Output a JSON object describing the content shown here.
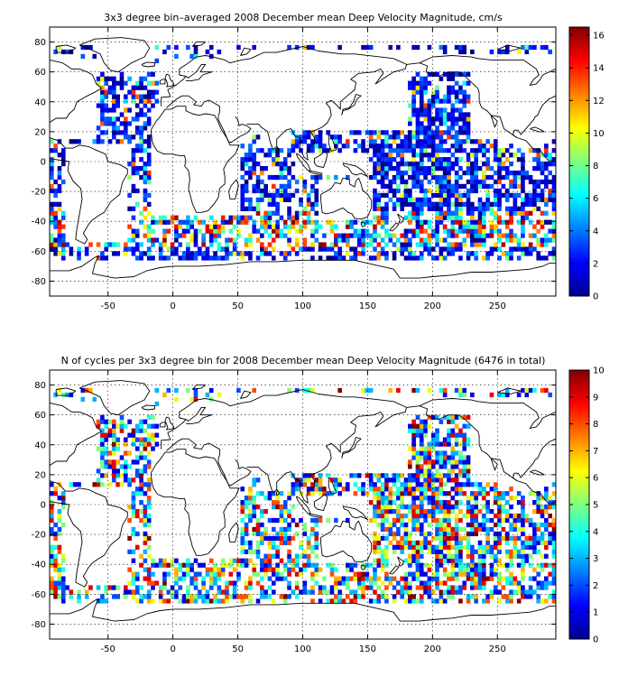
{
  "chart_data": [
    {
      "type": "heatmap",
      "title": "3x3 degree bin–averaged 2008 December mean Deep Velocity Magnitude, cm/s",
      "xlim": [
        -95,
        295
      ],
      "ylim": [
        -90,
        90
      ],
      "xticks": [
        -50,
        0,
        50,
        100,
        150,
        200,
        250
      ],
      "yticks": [
        -80,
        -60,
        -40,
        -20,
        0,
        20,
        40,
        60,
        80
      ],
      "grid": true,
      "colormap": "jet",
      "colorbar": {
        "min": 0,
        "max": 16.5,
        "ticks": [
          0,
          2,
          4,
          6,
          8,
          10,
          12,
          14,
          16
        ],
        "placement": "right"
      },
      "bin_size_deg": 3
    },
    {
      "type": "heatmap",
      "title": "N of cycles per 3x3 degree bin for 2008 December mean Deep Velocity Magnitude (6476 in total)",
      "xlim": [
        -95,
        295
      ],
      "ylim": [
        -90,
        90
      ],
      "xticks": [
        -50,
        0,
        50,
        100,
        150,
        200,
        250
      ],
      "yticks": [
        -80,
        -60,
        -40,
        -20,
        0,
        20,
        40,
        60,
        80
      ],
      "grid": true,
      "colormap": "jet",
      "colorbar": {
        "min": 0,
        "max": 10,
        "ticks": [
          0,
          1,
          2,
          3,
          4,
          5,
          6,
          7,
          8,
          9,
          10
        ],
        "placement": "right"
      },
      "total_count": 6476,
      "bin_size_deg": 3
    }
  ]
}
